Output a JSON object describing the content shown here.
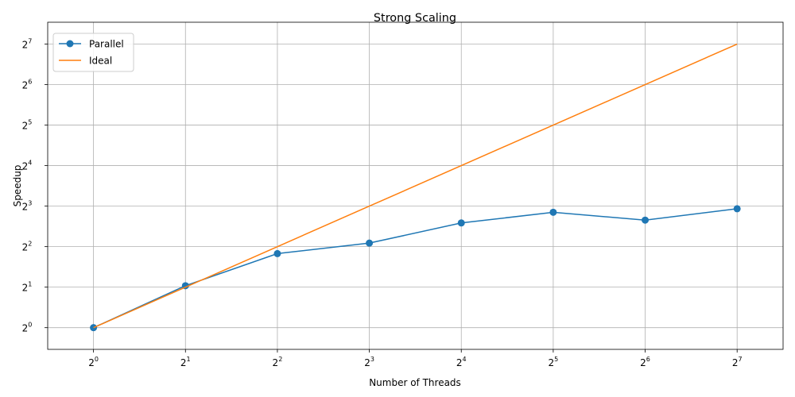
{
  "chart_data": {
    "type": "line",
    "title": "Strong Scaling",
    "xlabel": "Number of Threads",
    "ylabel": "Speedup",
    "x_scale": "log2",
    "y_scale": "log2",
    "x": [
      1,
      2,
      4,
      8,
      16,
      32,
      64,
      128
    ],
    "x_ticks": [
      {
        "base": "2",
        "exp": "0"
      },
      {
        "base": "2",
        "exp": "1"
      },
      {
        "base": "2",
        "exp": "2"
      },
      {
        "base": "2",
        "exp": "3"
      },
      {
        "base": "2",
        "exp": "4"
      },
      {
        "base": "2",
        "exp": "5"
      },
      {
        "base": "2",
        "exp": "6"
      },
      {
        "base": "2",
        "exp": "7"
      }
    ],
    "y_ticks": [
      {
        "base": "2",
        "exp": "0"
      },
      {
        "base": "2",
        "exp": "1"
      },
      {
        "base": "2",
        "exp": "2"
      },
      {
        "base": "2",
        "exp": "3"
      },
      {
        "base": "2",
        "exp": "4"
      },
      {
        "base": "2",
        "exp": "5"
      },
      {
        "base": "2",
        "exp": "6"
      },
      {
        "base": "2",
        "exp": "7"
      }
    ],
    "xlim": [
      0.708,
      181
    ],
    "ylim": [
      0.69,
      186
    ],
    "grid": true,
    "legend_position": "top-left",
    "series": [
      {
        "name": "Parallel",
        "color": "#1f77b4",
        "marker": "circle",
        "values": [
          1.0,
          2.05,
          3.55,
          4.25,
          6.0,
          7.2,
          6.3,
          7.65
        ]
      },
      {
        "name": "Ideal",
        "color": "#ff7f0e",
        "marker": "none",
        "values": [
          1,
          2,
          4,
          8,
          16,
          32,
          64,
          128
        ]
      }
    ]
  }
}
